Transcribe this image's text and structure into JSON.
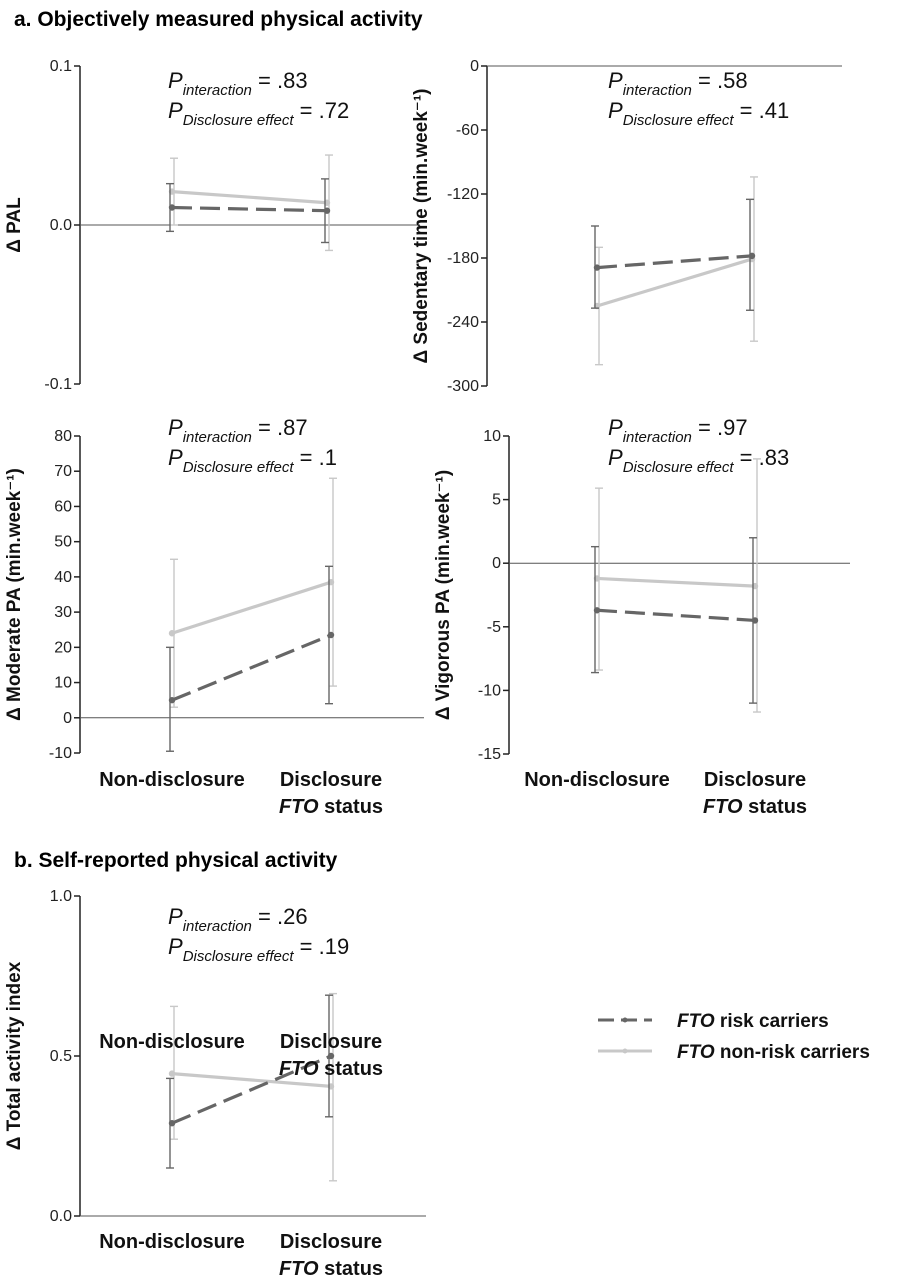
{
  "sections": {
    "a_title": "a. Objectively measured physical activity",
    "b_title": "b. Self-reported physical activity"
  },
  "legend": {
    "risk": {
      "italic": "FTO",
      "text": " risk carriers"
    },
    "nonrisk": {
      "italic": "FTO",
      "text": " non-risk carriers"
    }
  },
  "x_footer": {
    "italic": "FTO",
    "text": " status"
  },
  "p_labels": {
    "interaction": "interaction",
    "disclosure": "Disclosure effect"
  },
  "colors": {
    "risk": "#666666",
    "nonrisk": "#c8c8c8",
    "axis": "#222222",
    "zero": "#555555"
  },
  "chart_data": [
    {
      "id": "pal",
      "type": "line",
      "ylabel": "Δ PAL",
      "ylim": [
        -0.1,
        0.1
      ],
      "yticks": [
        -0.1,
        0.0,
        0.1
      ],
      "ytick_labels": [
        "-0.1",
        "0.0",
        "0.1"
      ],
      "categories": [
        "Non-disclosure",
        "Disclosure"
      ],
      "p_interaction": ".83",
      "p_disclosure": ".72",
      "series": [
        {
          "name": "FTO risk carriers",
          "style": "dashed",
          "values": [
            0.011,
            0.009
          ],
          "err_low": [
            -0.004,
            -0.011
          ],
          "err_high": [
            0.026,
            0.029
          ]
        },
        {
          "name": "FTO non-risk carriers",
          "style": "solid",
          "values": [
            0.021,
            0.014
          ],
          "err_low": [
            0.0,
            -0.016
          ],
          "err_high": [
            0.042,
            0.044
          ]
        }
      ]
    },
    {
      "id": "sedentary",
      "type": "line",
      "ylabel": "Δ Sedentary time (min.week⁻¹)",
      "ylim": [
        -300,
        0
      ],
      "yticks": [
        -300,
        -240,
        -180,
        -120,
        -60,
        0
      ],
      "ytick_labels": [
        "-300",
        "-240",
        "-180",
        "-120",
        "-60",
        "0"
      ],
      "categories": [
        "Non-disclosure",
        "Disclosure"
      ],
      "p_interaction": ".58",
      "p_disclosure": ".41",
      "series": [
        {
          "name": "FTO risk carriers",
          "style": "dashed",
          "values": [
            -189,
            -178
          ],
          "err_low": [
            -227,
            -229
          ],
          "err_high": [
            -150,
            -125
          ]
        },
        {
          "name": "FTO non-risk carriers",
          "style": "solid",
          "values": [
            -225,
            -181
          ],
          "err_low": [
            -280,
            -258
          ],
          "err_high": [
            -170,
            -104
          ]
        }
      ]
    },
    {
      "id": "moderate",
      "type": "line",
      "ylabel": "Δ Moderate PA (min.week⁻¹)",
      "ylim": [
        -10,
        80
      ],
      "yticks": [
        -10,
        0,
        10,
        20,
        30,
        40,
        50,
        60,
        70,
        80
      ],
      "ytick_labels": [
        "-10",
        "0",
        "10",
        "20",
        "30",
        "40",
        "50",
        "60",
        "70",
        "80"
      ],
      "categories": [
        "Non-disclosure",
        "Disclosure"
      ],
      "p_interaction": ".87",
      "p_disclosure": ".1",
      "series": [
        {
          "name": "FTO risk carriers",
          "style": "dashed",
          "values": [
            5,
            23.5
          ],
          "err_low": [
            -9.5,
            4
          ],
          "err_high": [
            20,
            43
          ]
        },
        {
          "name": "FTO non-risk carriers",
          "style": "solid",
          "values": [
            24,
            38.5
          ],
          "err_low": [
            3,
            9
          ],
          "err_high": [
            45,
            68
          ]
        }
      ]
    },
    {
      "id": "vigorous",
      "type": "line",
      "ylabel": "Δ Vigorous PA (min.week⁻¹)",
      "ylim": [
        -15,
        10
      ],
      "yticks": [
        -15,
        -10,
        -5,
        0,
        5,
        10
      ],
      "ytick_labels": [
        "-15",
        "-10",
        "-5",
        "0",
        "5",
        "10"
      ],
      "categories": [
        "Non-disclosure",
        "Disclosure"
      ],
      "p_interaction": ".97",
      "p_disclosure": ".83",
      "series": [
        {
          "name": "FTO risk carriers",
          "style": "dashed",
          "values": [
            -3.7,
            -4.5
          ],
          "err_low": [
            -8.6,
            -11.0
          ],
          "err_high": [
            1.3,
            2.0
          ]
        },
        {
          "name": "FTO non-risk carriers",
          "style": "solid",
          "values": [
            -1.2,
            -1.8
          ],
          "err_low": [
            -8.4,
            -11.7
          ],
          "err_high": [
            5.9,
            8.2
          ]
        }
      ]
    },
    {
      "id": "total",
      "type": "line",
      "ylabel": "Δ Total activity index",
      "ylim": [
        0.0,
        1.0
      ],
      "yticks": [
        0.0,
        0.5,
        1.0
      ],
      "ytick_labels": [
        "0.0",
        "0.5",
        "1.0"
      ],
      "categories": [
        "Non-disclosure",
        "Disclosure"
      ],
      "p_interaction": ".26",
      "p_disclosure": ".19",
      "series": [
        {
          "name": "FTO risk carriers",
          "style": "dashed",
          "values": [
            0.29,
            0.5
          ],
          "err_low": [
            0.15,
            0.31
          ],
          "err_high": [
            0.43,
            0.69
          ]
        },
        {
          "name": "FTO non-risk carriers",
          "style": "solid",
          "values": [
            0.445,
            0.405
          ],
          "err_low": [
            0.24,
            0.11
          ],
          "err_high": [
            0.655,
            0.695
          ]
        }
      ]
    }
  ]
}
